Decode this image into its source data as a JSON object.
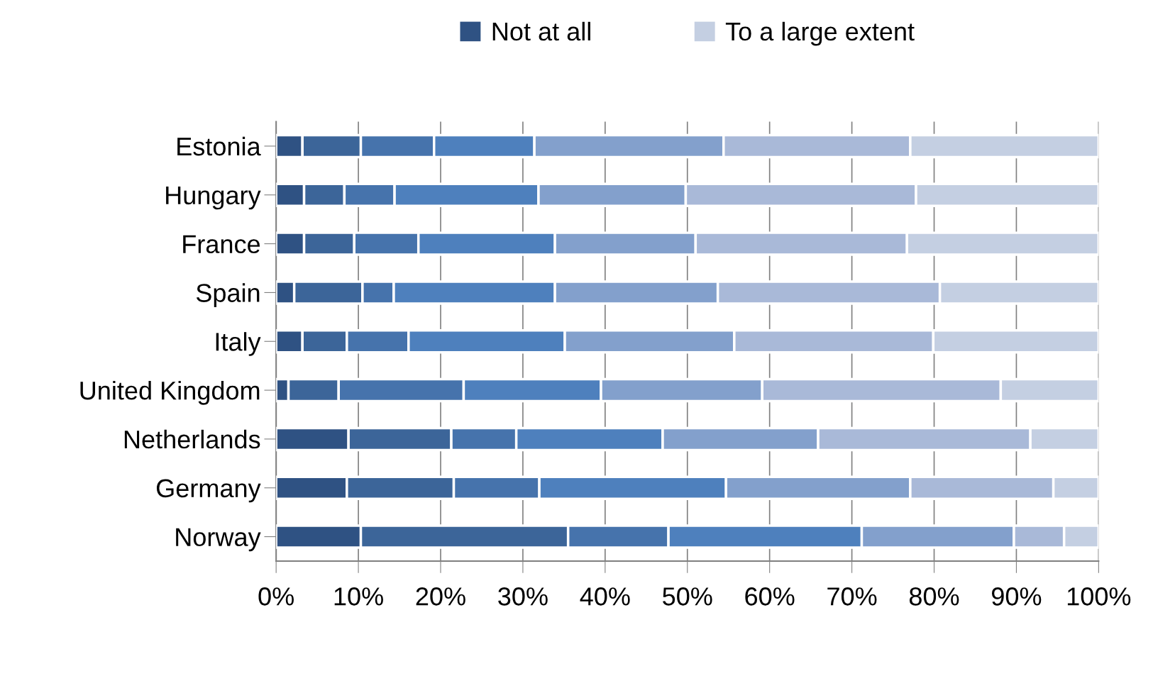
{
  "chart_data": {
    "type": "bar",
    "orientation": "horizontal",
    "stacked": true,
    "categories": [
      "Estonia",
      "Hungary",
      "France",
      "Spain",
      "Italy",
      "United Kingdom",
      "Netherlands",
      "Germany",
      "Norway"
    ],
    "series": [
      {
        "name": "Not at all",
        "color": "#2f5283",
        "values": [
          3.2,
          3.4,
          3.4,
          2.2,
          3.2,
          1.5,
          8.8,
          8.6,
          10.3
        ]
      },
      {
        "color": "#3c6599",
        "values": [
          7.1,
          4.9,
          6.1,
          8.3,
          5.4,
          6.1,
          12.5,
          13.0,
          25.2
        ]
      },
      {
        "color": "#4673ac",
        "values": [
          8.9,
          6.1,
          7.8,
          3.8,
          7.5,
          15.2,
          7.9,
          10.4,
          12.2
        ]
      },
      {
        "color": "#4e80bd",
        "values": [
          12.2,
          17.5,
          16.6,
          19.6,
          19.0,
          16.7,
          17.8,
          22.7,
          23.5
        ]
      },
      {
        "color": "#83a0cc",
        "values": [
          23.0,
          17.9,
          17.1,
          19.8,
          20.6,
          19.6,
          18.9,
          22.4,
          18.5
        ]
      },
      {
        "color": "#a9b9d8",
        "values": [
          22.7,
          28.0,
          25.7,
          27.0,
          24.2,
          29.0,
          25.8,
          17.4,
          6.1
        ]
      },
      {
        "name": "To a large extent",
        "color": "#c4cfe2",
        "values": [
          22.9,
          22.2,
          23.3,
          19.3,
          20.1,
          11.9,
          8.3,
          5.5,
          4.2
        ]
      }
    ],
    "xlim": [
      0,
      100
    ],
    "xticks": [
      {
        "value": 0,
        "label": "0%"
      },
      {
        "value": 10,
        "label": "10%"
      },
      {
        "value": 20,
        "label": "20%"
      },
      {
        "value": 30,
        "label": "30%"
      },
      {
        "value": 40,
        "label": "40%"
      },
      {
        "value": 50,
        "label": "50%"
      },
      {
        "value": 60,
        "label": "60%"
      },
      {
        "value": 70,
        "label": "70%"
      },
      {
        "value": 80,
        "label": "80%"
      },
      {
        "value": 90,
        "label": "90%"
      },
      {
        "value": 100,
        "label": "100%"
      }
    ],
    "grid": "x",
    "legend": "top"
  }
}
